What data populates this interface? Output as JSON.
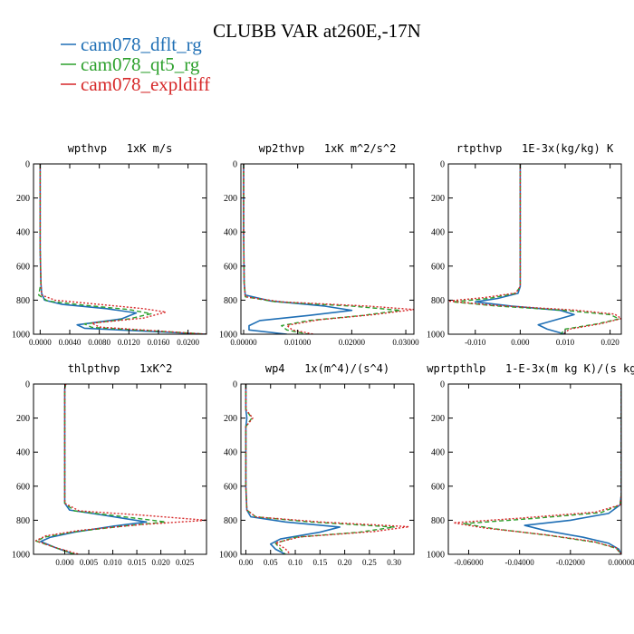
{
  "title": "CLUBB VAR at260E,-17N",
  "legend": [
    {
      "label": "cam078_dflt_rg",
      "color": "#1f6fb5"
    },
    {
      "label": "cam078_qt5_rg",
      "color": "#2ca02c"
    },
    {
      "label": "cam078_expldiff",
      "color": "#d62728"
    }
  ],
  "chart_data": [
    {
      "type": "line",
      "title": "wpthvp   1xK m/s",
      "xlim": [
        -0.0009,
        0.0225
      ],
      "ylim": [
        1000,
        0
      ],
      "xticks": [
        0.0,
        0.004,
        0.008,
        0.012,
        0.016,
        0.02
      ],
      "xtick_labels": [
        "0.0000",
        "0.0040",
        "0.0080",
        "0.0120",
        "0.0160",
        "0.0200"
      ],
      "yticks": [
        0,
        200,
        400,
        600,
        800,
        1000
      ],
      "series": [
        {
          "name": "cam078_dflt_rg",
          "color": "#1f6fb5",
          "x": [
            0.0,
            0.0,
            0.0,
            0.0001,
            0.0002,
            0.0006,
            0.003,
            0.009,
            0.013,
            0.011,
            0.005,
            0.006,
            0.018,
            0.0225
          ],
          "y": [
            0,
            200,
            500,
            700,
            760,
            800,
            825,
            850,
            875,
            910,
            945,
            965,
            990,
            1000
          ]
        },
        {
          "name": "cam078_qt5_rg",
          "color": "#2ca02c",
          "x": [
            0.0,
            0.0,
            0.0,
            0.0001,
            -0.0002,
            0.001,
            0.006,
            0.012,
            0.015,
            0.012,
            0.006,
            0.007,
            0.019,
            0.0225
          ],
          "y": [
            0,
            200,
            500,
            700,
            770,
            805,
            830,
            855,
            880,
            910,
            940,
            960,
            990,
            1000
          ]
        },
        {
          "name": "cam078_expldiff",
          "color": "#d62728",
          "x": [
            0.0,
            0.0,
            0.0,
            0.0001,
            0.0002,
            0.002,
            0.008,
            0.014,
            0.017,
            0.014,
            0.007,
            0.008,
            0.019,
            0.0225
          ],
          "y": [
            0,
            200,
            500,
            700,
            770,
            800,
            825,
            850,
            870,
            905,
            935,
            958,
            990,
            1000
          ]
        }
      ]
    },
    {
      "type": "line",
      "title": "wp2thvp   1xK m^2/s^2",
      "xlim": [
        -0.0005,
        0.0315
      ],
      "ylim": [
        1000,
        0
      ],
      "xticks": [
        0.0,
        0.01,
        0.02,
        0.03
      ],
      "xtick_labels": [
        "0.00000",
        "0.01000",
        "0.02000",
        "0.03000"
      ],
      "yticks": [
        0,
        200,
        400,
        600,
        800,
        1000
      ],
      "series": [
        {
          "name": "cam078_dflt_rg",
          "color": "#1f6fb5",
          "x": [
            0.0,
            0.0,
            0.0001,
            0.0003,
            0.005,
            0.015,
            0.02,
            0.012,
            0.003,
            0.001,
            0.001,
            0.008
          ],
          "y": [
            0,
            400,
            700,
            770,
            805,
            835,
            860,
            890,
            920,
            950,
            975,
            1000
          ]
        },
        {
          "name": "cam078_qt5_rg",
          "color": "#2ca02c",
          "x": [
            0.0,
            0.0,
            0.0001,
            0.0003,
            0.006,
            0.02,
            0.029,
            0.022,
            0.012,
            0.007,
            0.008,
            0.012
          ],
          "y": [
            0,
            400,
            700,
            780,
            810,
            835,
            860,
            890,
            920,
            950,
            975,
            1000
          ]
        },
        {
          "name": "cam078_expldiff",
          "color": "#d62728",
          "x": [
            0.0,
            0.0,
            0.0001,
            0.0003,
            0.007,
            0.023,
            0.0315,
            0.024,
            0.014,
            0.008,
            0.009,
            0.013
          ],
          "y": [
            0,
            400,
            700,
            780,
            810,
            835,
            855,
            885,
            915,
            948,
            975,
            1000
          ]
        }
      ]
    },
    {
      "type": "line",
      "title": "rtpthvp   1E-3x(kg/kg) K",
      "xlim": [
        -0.016,
        0.0225
      ],
      "ylim": [
        1000,
        0
      ],
      "xticks": [
        -0.01,
        0.0,
        0.01,
        0.02
      ],
      "xtick_labels": [
        "-0.010",
        "0.000",
        "0.010",
        "0.020"
      ],
      "yticks": [
        0,
        200,
        400,
        600,
        800,
        1000
      ],
      "series": [
        {
          "name": "cam078_dflt_rg",
          "color": "#1f6fb5",
          "x": [
            0.0,
            0.0,
            0.0,
            0.0,
            -0.0005,
            -0.005,
            -0.01,
            -0.002,
            0.009,
            0.012,
            0.008,
            0.004,
            0.006,
            0.01
          ],
          "y": [
            0,
            300,
            600,
            720,
            760,
            790,
            810,
            835,
            860,
            885,
            915,
            945,
            970,
            1000
          ]
        },
        {
          "name": "cam078_qt5_rg",
          "color": "#2ca02c",
          "x": [
            0.0,
            0.0,
            0.0,
            0.0,
            -0.001,
            -0.007,
            -0.015,
            -0.005,
            0.01,
            0.02,
            0.022,
            0.017,
            0.01,
            0.009
          ],
          "y": [
            0,
            300,
            600,
            720,
            760,
            790,
            810,
            835,
            860,
            885,
            910,
            940,
            970,
            1000
          ]
        },
        {
          "name": "cam078_expldiff",
          "color": "#d62728",
          "x": [
            0.0,
            0.0,
            0.0,
            0.0,
            -0.001,
            -0.008,
            -0.016,
            -0.006,
            0.012,
            0.021,
            0.0225,
            0.018,
            0.011,
            0.0095
          ],
          "y": [
            0,
            300,
            600,
            720,
            758,
            785,
            805,
            830,
            858,
            882,
            908,
            938,
            970,
            1000
          ]
        }
      ]
    },
    {
      "type": "line",
      "title": "thlpthvp   1xK^2",
      "xlim": [
        -0.0065,
        0.0295
      ],
      "ylim": [
        1000,
        0
      ],
      "xticks": [
        0.0,
        0.005,
        0.01,
        0.015,
        0.02,
        0.025
      ],
      "xtick_labels": [
        "0.000",
        "0.005",
        "0.010",
        "0.015",
        "0.020",
        "0.025"
      ],
      "yticks": [
        0,
        200,
        400,
        600,
        800,
        1000
      ],
      "series": [
        {
          "name": "cam078_dflt_rg",
          "color": "#1f6fb5",
          "x": [
            0.0002,
            0.0,
            0.0,
            0.0,
            0.001,
            0.008,
            0.017,
            0.01,
            0.002,
            -0.003,
            -0.005,
            -0.002,
            0.002
          ],
          "y": [
            0,
            30,
            300,
            700,
            740,
            770,
            810,
            835,
            870,
            900,
            925,
            960,
            1000
          ]
        },
        {
          "name": "cam078_qt5_rg",
          "color": "#2ca02c",
          "x": [
            0.0002,
            0.0,
            0.0,
            0.0,
            0.002,
            0.011,
            0.021,
            0.012,
            0.002,
            -0.004,
            -0.006,
            -0.002,
            0.002
          ],
          "y": [
            0,
            30,
            300,
            700,
            745,
            775,
            810,
            835,
            868,
            898,
            922,
            960,
            1000
          ]
        },
        {
          "name": "cam078_expldiff",
          "color": "#d62728",
          "x": [
            0.0002,
            0.0,
            0.0,
            0.0,
            0.003,
            0.016,
            0.0295,
            0.016,
            0.003,
            -0.004,
            -0.006,
            -0.002,
            0.003
          ],
          "y": [
            0,
            30,
            300,
            700,
            745,
            770,
            800,
            825,
            860,
            892,
            920,
            960,
            1000
          ]
        }
      ]
    },
    {
      "type": "line",
      "title": "wp4   1x(m^4)/(s^4)",
      "xlim": [
        -0.01,
        0.34
      ],
      "ylim": [
        1000,
        0
      ],
      "xticks": [
        0.0,
        0.05,
        0.1,
        0.15,
        0.2,
        0.25,
        0.3
      ],
      "xtick_labels": [
        "0.00",
        "0.05",
        "0.10",
        "0.15",
        "0.20",
        "0.25",
        "0.30"
      ],
      "yticks": [
        0,
        200,
        400,
        600,
        800,
        1000
      ],
      "series": [
        {
          "name": "cam078_dflt_rg",
          "color": "#1f6fb5",
          "x": [
            0.0,
            0.0,
            0.002,
            0.0,
            0.0,
            0.002,
            0.01,
            0.08,
            0.19,
            0.15,
            0.07,
            0.05,
            0.06,
            0.08
          ],
          "y": [
            0,
            150,
            200,
            250,
            600,
            740,
            780,
            810,
            840,
            870,
            910,
            940,
            970,
            1000
          ]
        },
        {
          "name": "cam078_qt5_rg",
          "color": "#2ca02c",
          "x": [
            0.0,
            0.0,
            0.012,
            0.0,
            0.0,
            0.002,
            0.02,
            0.13,
            0.3,
            0.23,
            0.1,
            0.06,
            0.07,
            0.08
          ],
          "y": [
            0,
            150,
            200,
            250,
            600,
            740,
            780,
            810,
            840,
            870,
            900,
            935,
            970,
            1000
          ]
        },
        {
          "name": "cam078_expldiff",
          "color": "#d62728",
          "x": [
            0.0,
            0.0,
            0.014,
            0.0,
            0.0,
            0.002,
            0.02,
            0.15,
            0.33,
            0.26,
            0.11,
            0.06,
            0.08,
            0.09
          ],
          "y": [
            0,
            150,
            200,
            250,
            600,
            740,
            780,
            810,
            838,
            866,
            898,
            932,
            968,
            1000
          ]
        }
      ]
    },
    {
      "type": "line",
      "title": "wprtpthlp   1-E-3x(m kg K)/(s kg)",
      "xlim": [
        -0.068,
        0.0
      ],
      "ylim": [
        1000,
        0
      ],
      "xticks": [
        -0.06,
        -0.04,
        -0.02,
        0.0
      ],
      "xtick_labels": [
        "-0.06000",
        "-0.04000",
        "-0.02000",
        "0.00000"
      ],
      "yticks": [
        0,
        200,
        400,
        600,
        800,
        1000
      ],
      "series": [
        {
          "name": "cam078_dflt_rg",
          "color": "#1f6fb5",
          "x": [
            0.0,
            0.0,
            -0.0005,
            -0.005,
            -0.02,
            -0.038,
            -0.03,
            -0.015,
            -0.005,
            -0.001,
            0.0
          ],
          "y": [
            0,
            650,
            710,
            760,
            800,
            830,
            860,
            900,
            935,
            970,
            1000
          ]
        },
        {
          "name": "cam078_qt5_rg",
          "color": "#2ca02c",
          "x": [
            0.0,
            0.0,
            -0.0005,
            -0.008,
            -0.035,
            -0.062,
            -0.05,
            -0.028,
            -0.01,
            -0.002,
            0.0
          ],
          "y": [
            0,
            650,
            710,
            755,
            790,
            820,
            850,
            890,
            930,
            965,
            1000
          ]
        },
        {
          "name": "cam078_expldiff",
          "color": "#d62728",
          "x": [
            0.0,
            0.0,
            -0.0005,
            -0.01,
            -0.04,
            -0.066,
            -0.054,
            -0.03,
            -0.011,
            -0.002,
            0.0
          ],
          "y": [
            0,
            650,
            710,
            752,
            788,
            815,
            845,
            885,
            925,
            962,
            1000
          ]
        }
      ]
    }
  ]
}
